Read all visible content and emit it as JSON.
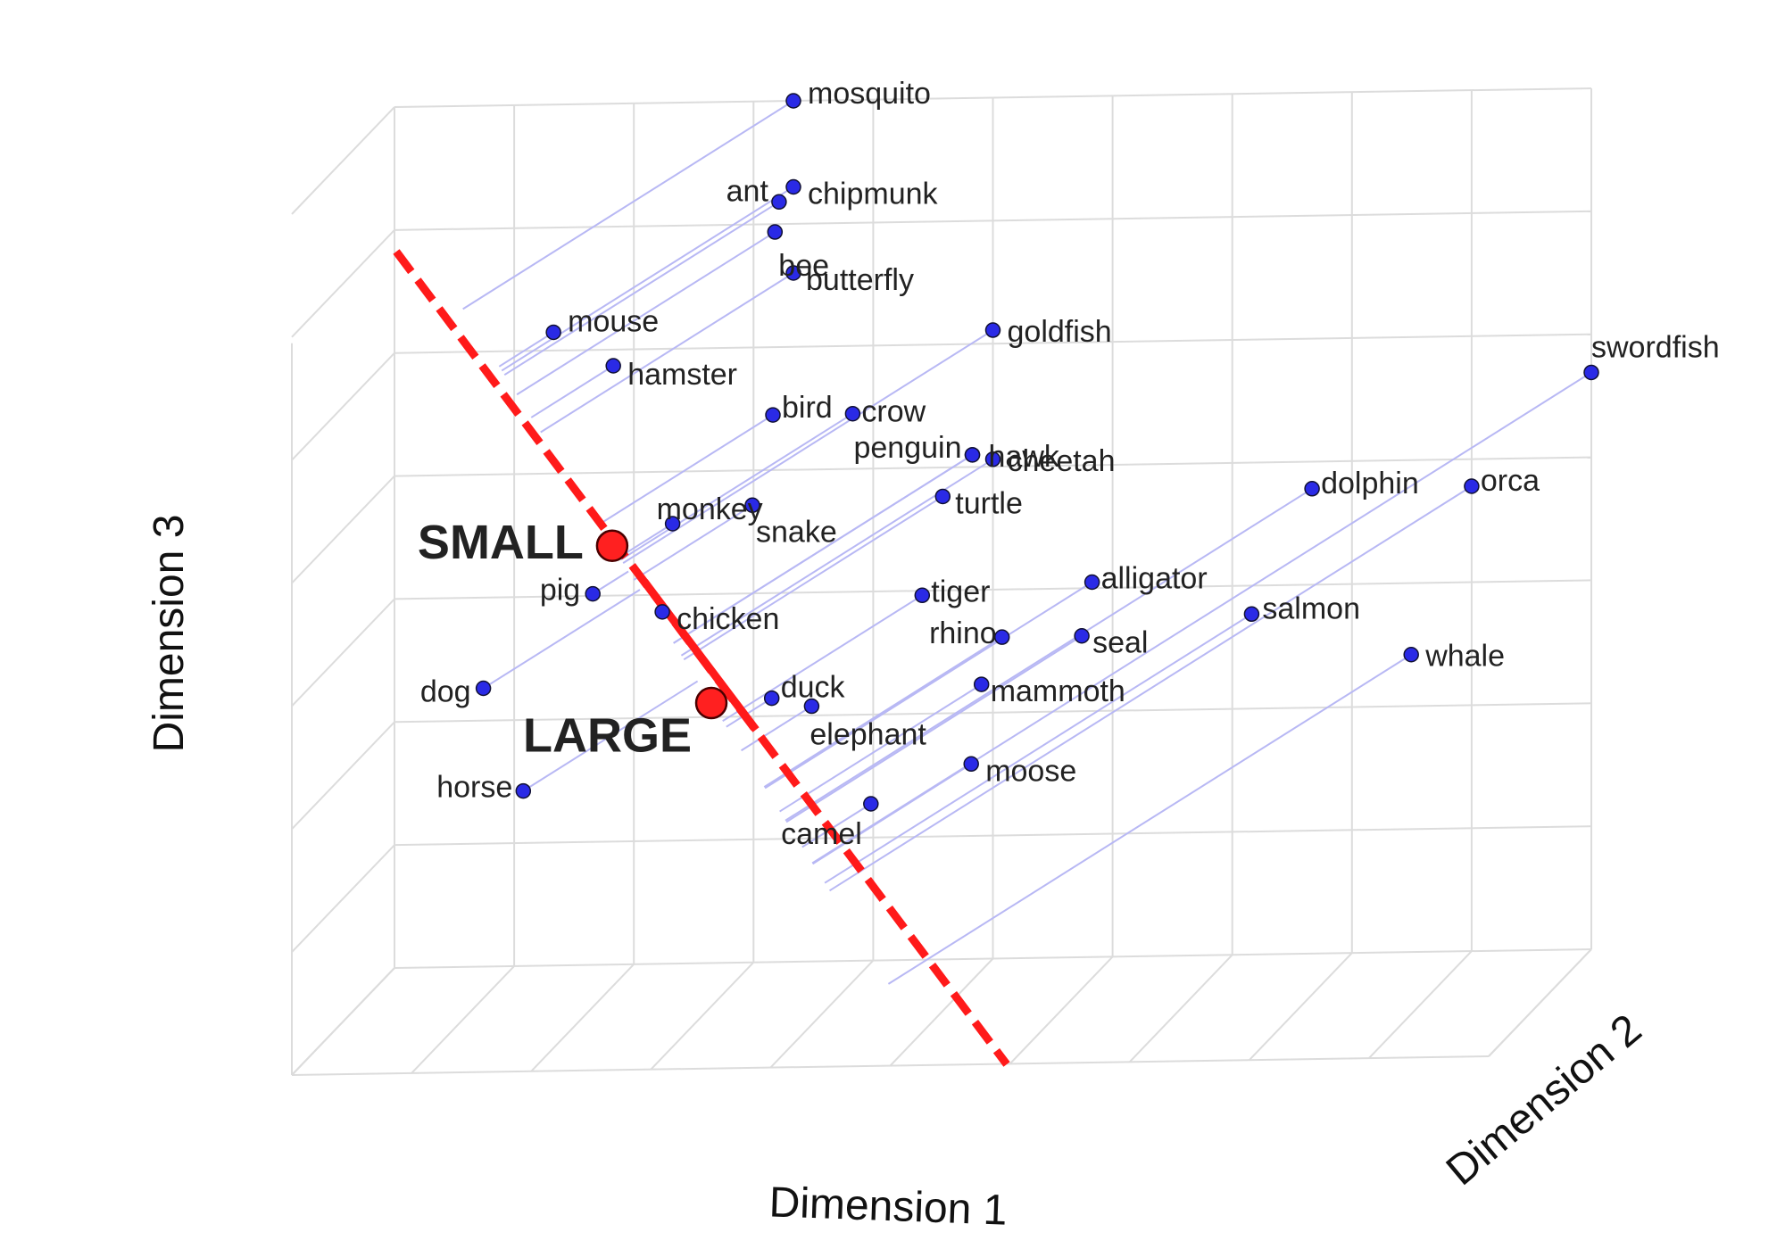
{
  "chart_data": {
    "type": "scatter",
    "subtype": "3d-scatter-with-projection-axis",
    "xlabel": "Dimension 1",
    "ylabel": "Dimension 2",
    "zlabel": "Dimension 3",
    "grid": true,
    "colors": {
      "points": "#2a2ae6",
      "projection_lines": "#b8b8f4",
      "axis_line": "#ff1a1a",
      "anchor_points": "#ff2020",
      "grid": "#dcdcdc"
    },
    "points": [
      {
        "label": "mosquito",
        "x": 1.0,
        "y": 0.0,
        "z": 1.0
      },
      {
        "label": "ant",
        "x": 1.0,
        "y": 0.14,
        "z": 0.9
      },
      {
        "label": "chipmunk",
        "x": 1.0,
        "y": 0.0,
        "z": 0.9
      },
      {
        "label": "bee",
        "x": 1.0,
        "y": 0.18,
        "z": 0.87
      },
      {
        "label": "butterfly",
        "x": 1.0,
        "y": 0.0,
        "z": 0.8
      },
      {
        "label": "mouse",
        "x": 0.45,
        "y": 0.2,
        "z": 0.76
      },
      {
        "label": "hamster",
        "x": 0.6,
        "y": 0.2,
        "z": 0.72
      },
      {
        "label": "goldfish",
        "x": 1.5,
        "y": 0.0,
        "z": 0.73
      },
      {
        "label": "bird",
        "x": 1.0,
        "y": 0.2,
        "z": 0.66
      },
      {
        "label": "crow",
        "x": 1.2,
        "y": 0.2,
        "z": 0.66
      },
      {
        "label": "penguin",
        "x": 1.5,
        "y": 0.2,
        "z": 0.61
      },
      {
        "label": "hawk",
        "x": 1.5,
        "y": 0.2,
        "z": 0.61
      },
      {
        "label": "cheetah",
        "x": 1.5,
        "y": 0.0,
        "z": 0.58
      },
      {
        "label": "snake",
        "x": 1.0,
        "y": 0.4,
        "z": 0.58
      },
      {
        "label": "monkey",
        "x": 0.8,
        "y": 0.4,
        "z": 0.56
      },
      {
        "label": "turtle",
        "x": 1.4,
        "y": 0.1,
        "z": 0.55
      },
      {
        "label": "swordfish",
        "x": 3.0,
        "y": 0.0,
        "z": 0.67
      },
      {
        "label": "dolphin",
        "x": 2.3,
        "y": 0.0,
        "z": 0.54
      },
      {
        "label": "orca",
        "x": 2.7,
        "y": 0.0,
        "z": 0.54
      },
      {
        "label": "pig",
        "x": 0.6,
        "y": 0.4,
        "z": 0.48
      },
      {
        "label": "chicken",
        "x": 0.8,
        "y": 0.5,
        "z": 0.47
      },
      {
        "label": "tiger",
        "x": 1.4,
        "y": 0.3,
        "z": 0.46
      },
      {
        "label": "alligator",
        "x": 1.8,
        "y": 0.2,
        "z": 0.46
      },
      {
        "label": "rhino",
        "x": 1.6,
        "y": 0.3,
        "z": 0.41
      },
      {
        "label": "seal",
        "x": 1.8,
        "y": 0.3,
        "z": 0.41
      },
      {
        "label": "salmon",
        "x": 2.2,
        "y": 0.2,
        "z": 0.42
      },
      {
        "label": "duck",
        "x": 1.1,
        "y": 0.6,
        "z": 0.38
      },
      {
        "label": "mammoth",
        "x": 1.6,
        "y": 0.5,
        "z": 0.38
      },
      {
        "label": "elephant",
        "x": 1.2,
        "y": 0.6,
        "z": 0.37
      },
      {
        "label": "whale",
        "x": 2.6,
        "y": 0.2,
        "z": 0.37
      },
      {
        "label": "dog",
        "x": 0.3,
        "y": 0.3,
        "z": 0.36
      },
      {
        "label": "moose",
        "x": 1.6,
        "y": 0.6,
        "z": 0.3
      },
      {
        "label": "camel",
        "x": 1.4,
        "y": 0.8,
        "z": 0.28
      },
      {
        "label": "horse",
        "x": 0.4,
        "y": 0.3,
        "z": 0.24
      }
    ],
    "axis_endpoints": [
      {
        "label": "SMALL",
        "x": 0.7,
        "y": 0.6,
        "z": 0.56
      },
      {
        "label": "LARGE",
        "x": 1.0,
        "y": 0.8,
        "z": 0.4
      }
    ]
  }
}
